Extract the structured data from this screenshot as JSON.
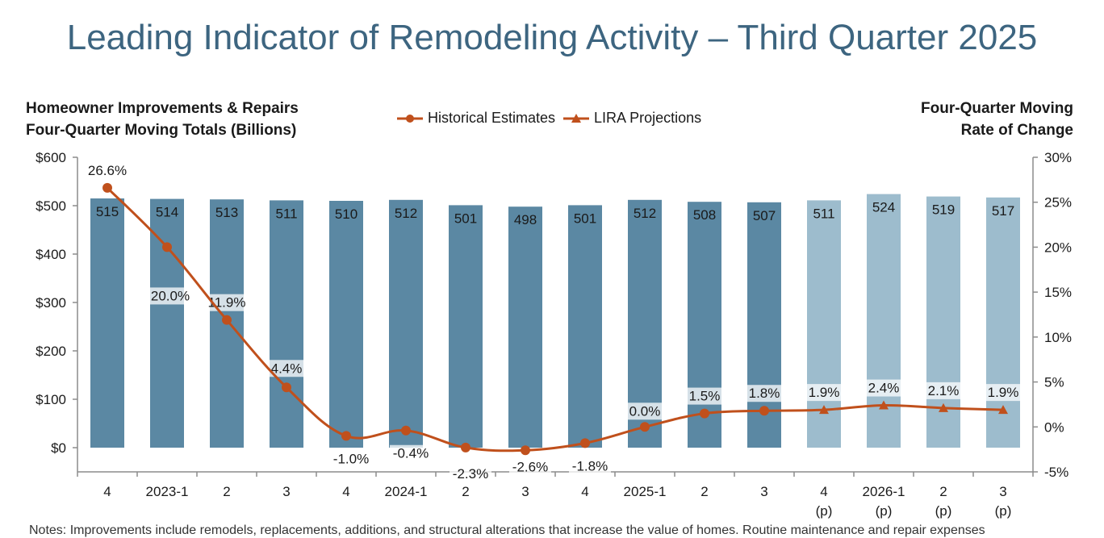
{
  "header": {
    "title": "Leading Indicator of Remodeling Activity – Third Quarter 2025",
    "left_axis_title_line1": "Homeowner Improvements & Repairs",
    "left_axis_title_line2": "Four-Quarter Moving Totals (Billions)",
    "right_axis_title_line1": "Four-Quarter Moving",
    "right_axis_title_line2": "Rate of Change"
  },
  "legend": {
    "historical": "Historical Estimates",
    "projections": "LIRA Projections"
  },
  "notes": "Notes: Improvements include remodels, replacements, additions, and structural alterations that increase the value of homes. Routine maintenance and repair expenses",
  "colors": {
    "historical_bar": "#5b88a3",
    "projection_bar": "#9dbccd",
    "line": "#c0501c",
    "title": "#3d6580"
  },
  "chart_data": {
    "type": "bar",
    "categories": [
      "4",
      "2023-1",
      "2",
      "3",
      "4",
      "2024-1",
      "2",
      "3",
      "4",
      "2025-1",
      "2",
      "3",
      "4",
      "2026-1",
      "2",
      "3"
    ],
    "projection_markers": [
      "",
      "",
      "",
      "",
      "",
      "",
      "",
      "",
      "",
      "",
      "",
      "",
      "(p)",
      "(p)",
      "(p)",
      "(p)"
    ],
    "bar_series": {
      "name": "Homeowner Improvements & Repairs Four-Quarter Moving Totals (Billions)",
      "values": [
        515,
        514,
        513,
        511,
        510,
        512,
        501,
        498,
        501,
        512,
        508,
        507,
        511,
        524,
        519,
        517
      ],
      "labels": [
        "515",
        "514",
        "513",
        "511",
        "510",
        "512",
        "501",
        "498",
        "501",
        "512",
        "508",
        "507",
        "511",
        "524",
        "519",
        "517"
      ],
      "projected": [
        false,
        false,
        false,
        false,
        false,
        false,
        false,
        false,
        false,
        false,
        false,
        false,
        true,
        true,
        true,
        true
      ]
    },
    "line_series": [
      {
        "name": "Historical Estimates",
        "values": [
          26.6,
          20.0,
          11.9,
          4.4,
          -1.0,
          -0.4,
          -2.3,
          -2.6,
          -1.8,
          0.0,
          1.5,
          1.8,
          null,
          null,
          null,
          null
        ],
        "labels": [
          "26.6%",
          "20.0%",
          "11.9%",
          "4.4%",
          "-1.0%",
          "-0.4%",
          "-2.3%",
          "-2.6%",
          "-1.8%",
          "0.0%",
          "1.5%",
          "1.8%",
          "",
          "",
          "",
          ""
        ]
      },
      {
        "name": "LIRA Projections",
        "values": [
          null,
          null,
          null,
          null,
          null,
          null,
          null,
          null,
          null,
          null,
          null,
          1.8,
          1.9,
          2.4,
          2.1,
          1.9
        ],
        "labels": [
          "",
          "",
          "",
          "",
          "",
          "",
          "",
          "",
          "",
          "",
          "",
          "",
          "1.9%",
          "2.4%",
          "2.1%",
          "1.9%"
        ]
      }
    ],
    "y_left": {
      "ticks": [
        "$600",
        "$500",
        "$400",
        "$300",
        "$200",
        "$100",
        "$0"
      ],
      "min": -50,
      "max": 600
    },
    "y_right": {
      "ticks": [
        "30%",
        "25%",
        "20%",
        "15%",
        "10%",
        "5%",
        "0%",
        "-5%"
      ],
      "min": -5,
      "max": 30
    },
    "legend_position": "top-center",
    "grid": false
  }
}
